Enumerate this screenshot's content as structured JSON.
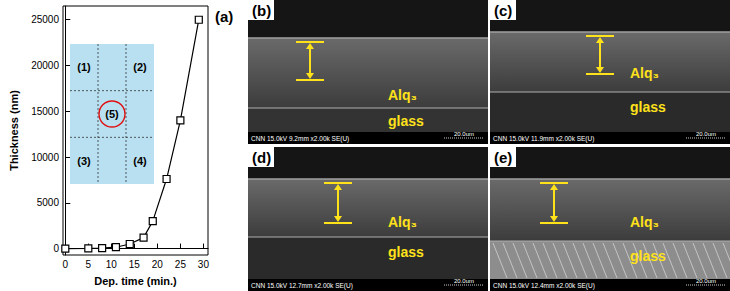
{
  "chart_data": {
    "type": "line",
    "panel_label": "(a)",
    "x_label": "Dep. time (min.)",
    "y_label": "Thickness (nm)",
    "x": [
      0,
      5,
      8,
      11,
      14,
      17,
      19,
      22,
      25,
      29
    ],
    "values": [
      0,
      30,
      60,
      150,
      500,
      1200,
      3000,
      7600,
      14000,
      25000
    ],
    "color": "#000000",
    "marker": "square",
    "grid": false,
    "xlim": [
      -0.5,
      31
    ],
    "xticks": [
      0,
      5,
      10,
      15,
      20,
      25,
      30
    ],
    "ylim": [
      -700,
      26500
    ],
    "yticks": [
      0,
      5000,
      10000,
      15000,
      20000,
      25000
    ]
  },
  "inset": {
    "cells": [
      "(1)",
      null,
      "(2)",
      null,
      "(5)",
      null,
      "(3)",
      null,
      "(4)"
    ],
    "highlight": "(5)",
    "color": "#b9e0f0",
    "highlight_color": "#e01010"
  },
  "images": [
    {
      "label": "(b)",
      "layer": "Alq₃",
      "substrate": "glass",
      "info": "CNN 15.0kV 9.2mm x2.00k SE(U)",
      "scale": "20.0um"
    },
    {
      "label": "(c)",
      "layer": "Alq₃",
      "substrate": "glass",
      "info": "CNN 15.0kV 11.9mm x2.00k SE(U)",
      "scale": "20.0um"
    },
    {
      "label": "(d)",
      "layer": "Alq₃",
      "substrate": "glass",
      "info": "CNN 15.0kV 12.7mm x2.00k SE(U)",
      "scale": "20.0um"
    },
    {
      "label": "(e)",
      "layer": "Alq₃",
      "substrate": "glass",
      "info": "CNN 15.0kV 12.4mm x2.00k SE(U)",
      "scale": "20.0um"
    }
  ]
}
